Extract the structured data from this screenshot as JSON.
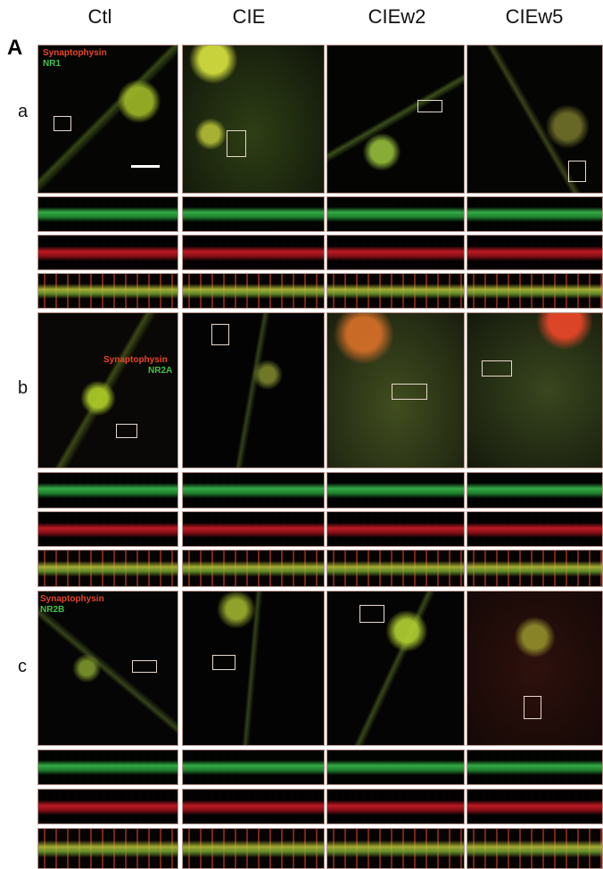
{
  "figure": {
    "panel_letter": "A",
    "columns": [
      "Ctl",
      "CIE",
      "CIEw2",
      "CIEw5"
    ],
    "rows": [
      {
        "letter": "a",
        "presynaptic_label": "Synaptophysin",
        "receptor_label": "NR1"
      },
      {
        "letter": "b",
        "presynaptic_label": "Synaptophysin",
        "receptor_label": "NR2A"
      },
      {
        "letter": "c",
        "presynaptic_label": "Synaptophysin",
        "receptor_label": "NR2B"
      }
    ]
  },
  "colors": {
    "synaptophysin": "#e8452a",
    "receptor": "#46c04a",
    "border": "#b8968d"
  }
}
